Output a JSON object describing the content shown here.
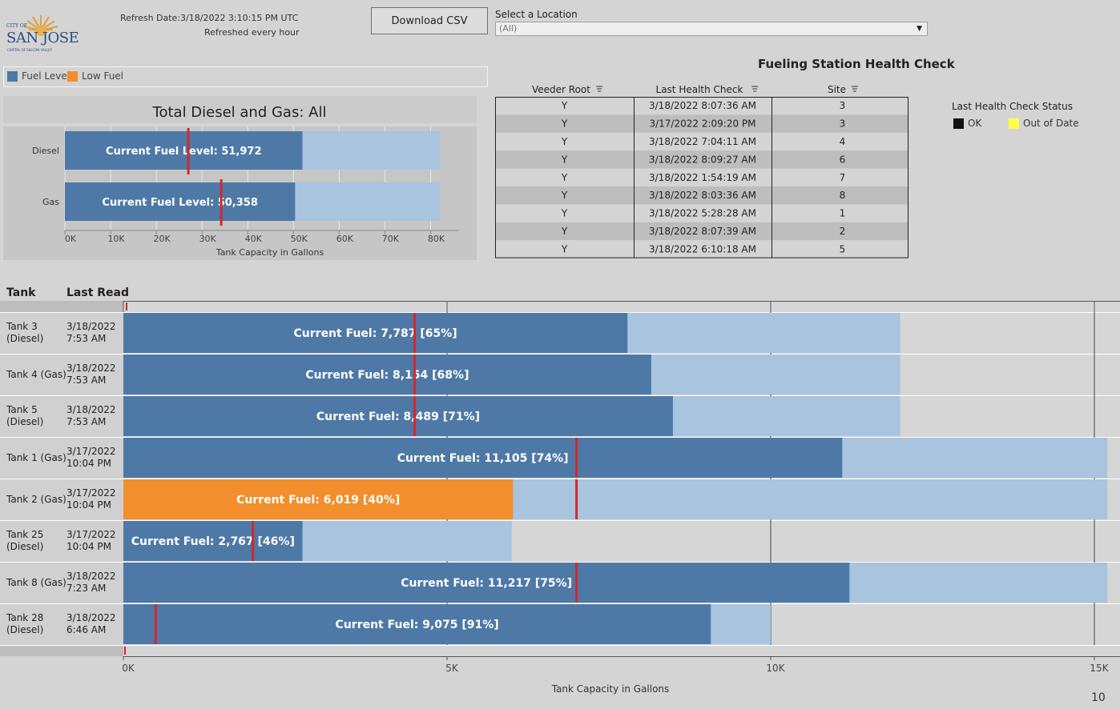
{
  "header": {
    "logo": {
      "line1": "CITY OF",
      "line2": "SAN JOSE",
      "line3": "CAPITAL OF SILICON VALLEY"
    },
    "refresh_date": "Refresh Date:3/18/2022 3:10:15 PM UTC",
    "refresh_note": "Refreshed every hour",
    "download_label": "Download CSV",
    "location_label": "Select a Location",
    "location_value": "(All)"
  },
  "legend": {
    "items": [
      {
        "label": "Fuel Level",
        "color": "#4e79a7"
      },
      {
        "label": "Low Fuel",
        "color": "#f28e2b"
      }
    ]
  },
  "colors": {
    "fuel": "#4e79a7",
    "low": "#f28e2b",
    "capacity": "#a9c4de",
    "marker": "#d62728"
  },
  "total_chart": {
    "title": "Total Diesel and Gas: All"
  },
  "health": {
    "title": "Fueling Station Health Check",
    "columns": [
      "Veeder Root",
      "Last Health Check",
      "Site"
    ],
    "status_title": "Last Health Check Status",
    "status_items": [
      {
        "label": "OK",
        "color": "#111111"
      },
      {
        "label": "Out of Date",
        "color": "#ffff44"
      }
    ]
  },
  "tanks": {
    "col_tank": "Tank",
    "col_read": "Last Read"
  },
  "page_number": "10",
  "chart_data": [
    {
      "type": "bar",
      "title": "Total Diesel and Gas: All",
      "orientation": "horizontal",
      "categories": [
        "Diesel",
        "Gas"
      ],
      "series": [
        {
          "name": "Fuel Level",
          "values": [
            51972,
            50358
          ]
        }
      ],
      "capacity": [
        82000,
        82000
      ],
      "threshold": [
        27000,
        34200
      ],
      "data_labels": [
        "Current Fuel Level: 51,972",
        "Current Fuel Level: 50,358"
      ],
      "xlabel": "Tank Capacity in Gallons",
      "xlim": [
        0,
        85000
      ],
      "xticks": [
        0,
        10000,
        20000,
        30000,
        40000,
        50000,
        60000,
        70000,
        80000
      ],
      "xtick_labels": [
        "0K",
        "10K",
        "20K",
        "30K",
        "40K",
        "50K",
        "60K",
        "70K",
        "80K"
      ]
    },
    {
      "type": "table",
      "title": "Fueling Station Health Check",
      "columns": [
        "Veeder Root",
        "Last Health Check",
        "Site"
      ],
      "rows": [
        [
          "Y",
          "3/18/2022 8:07:36 AM",
          "3"
        ],
        [
          "Y",
          "3/17/2022 2:09:20 PM",
          "3"
        ],
        [
          "Y",
          "3/18/2022 7:04:11 AM",
          "4"
        ],
        [
          "Y",
          "3/18/2022 8:09:27 AM",
          "6"
        ],
        [
          "Y",
          "3/18/2022 1:54:19 AM",
          "7"
        ],
        [
          "Y",
          "3/18/2022 8:03:36 AM",
          "8"
        ],
        [
          "Y",
          "3/18/2022 5:28:28 AM",
          "1"
        ],
        [
          "Y",
          "3/18/2022 8:07:39 AM",
          "2"
        ],
        [
          "Y",
          "3/18/2022 6:10:18 AM",
          "5"
        ]
      ]
    },
    {
      "type": "bar",
      "orientation": "horizontal",
      "categories": [
        "Tank 3 (Diesel)",
        "Tank 4 (Gas)",
        "Tank 5 (Diesel)",
        "Tank 1 (Gas)",
        "Tank 2 (Gas)",
        "Tank 25 (Diesel)",
        "Tank 8 (Gas)",
        "Tank 28 (Diesel)"
      ],
      "last_read": [
        [
          "3/18/2022",
          "7:53 AM"
        ],
        [
          "3/18/2022",
          "7:53 AM"
        ],
        [
          "3/18/2022",
          "7:53 AM"
        ],
        [
          "3/17/2022",
          "10:04 PM"
        ],
        [
          "3/17/2022",
          "10:04 PM"
        ],
        [
          "3/17/2022",
          "10:04 PM"
        ],
        [
          "3/18/2022",
          "7:23 AM"
        ],
        [
          "3/18/2022",
          "6:46 AM"
        ]
      ],
      "tank_labels": [
        [
          "Tank 3",
          "(Diesel)"
        ],
        [
          "Tank 4 (Gas)"
        ],
        [
          "Tank 5",
          "(Diesel)"
        ],
        [
          "Tank 1 (Gas)"
        ],
        [
          "Tank 2 (Gas)"
        ],
        [
          "Tank 25",
          "(Diesel)"
        ],
        [
          "Tank 8 (Gas)"
        ],
        [
          "Tank 28",
          "(Diesel)"
        ]
      ],
      "series": [
        {
          "name": "Fuel Level",
          "values": [
            7787,
            8154,
            8489,
            11105,
            6019,
            2767,
            11217,
            9075
          ]
        }
      ],
      "low_fuel": [
        false,
        false,
        false,
        false,
        true,
        false,
        false,
        false
      ],
      "capacity": [
        12000,
        12000,
        12000,
        15200,
        15200,
        6000,
        15200,
        10000
      ],
      "threshold": [
        4500,
        4500,
        4500,
        7000,
        7000,
        2000,
        7000,
        500
      ],
      "data_labels": [
        "Current Fuel: 7,787 [65%]",
        "Current Fuel: 8,154 [68%]",
        "Current Fuel: 8,489 [71%]",
        "Current Fuel: 11,105 [74%]",
        "Current Fuel: 6,019 [40%]",
        "Current Fuel: 2,767 [46%]",
        "Current Fuel: 11,217 [75%]",
        "Current Fuel: 9,075 [91%]"
      ],
      "xlabel": "Tank Capacity in Gallons",
      "xlim": [
        0,
        15200
      ],
      "xticks": [
        0,
        5000,
        10000,
        15000
      ],
      "xtick_labels": [
        "0K",
        "5K",
        "10K",
        "15K"
      ]
    }
  ]
}
